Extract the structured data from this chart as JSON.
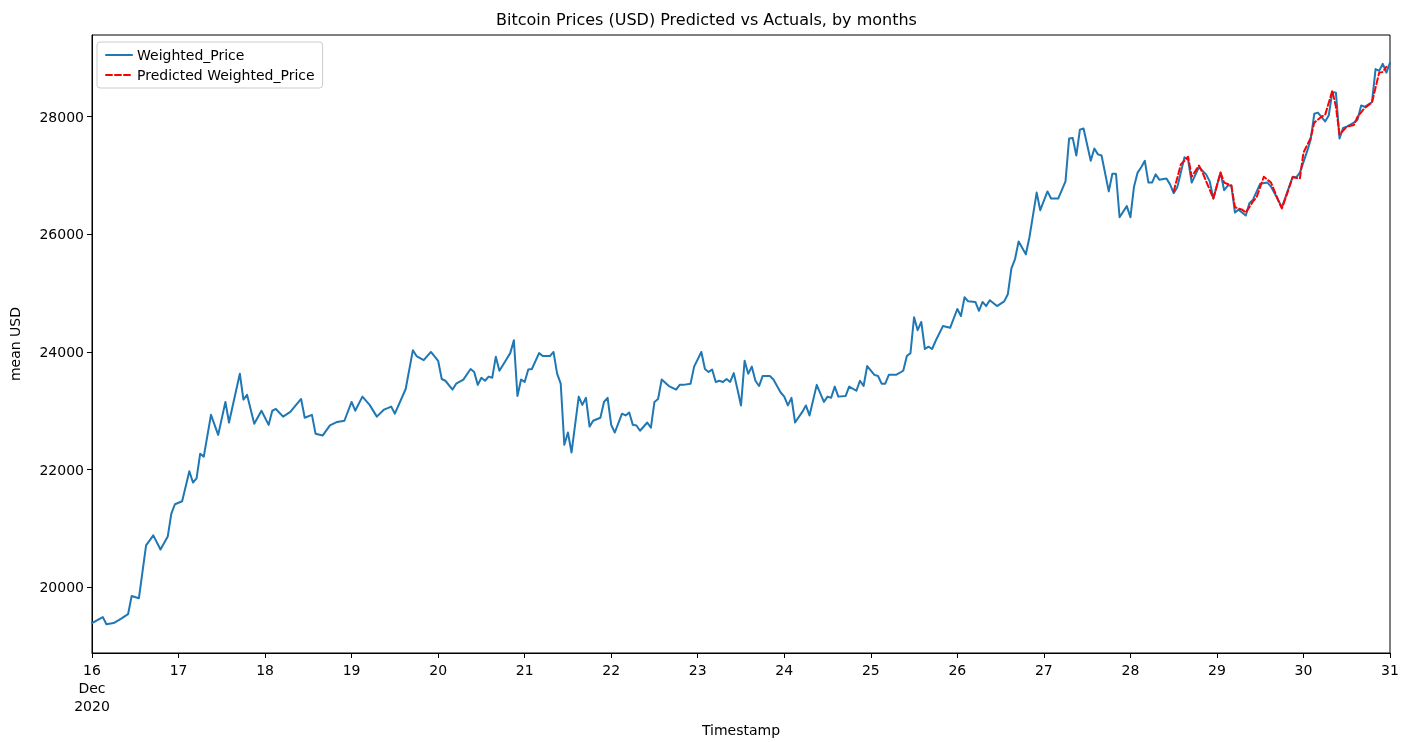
{
  "chart_data": {
    "type": "line",
    "title": "Bitcoin Prices (USD) Predicted vs Actuals, by months",
    "xlabel": "Timestamp",
    "ylabel": "mean USD",
    "xlim": [
      "2020-12-16",
      "2020-12-31"
    ],
    "ylim": [
      18880,
      29390
    ],
    "xticks": [
      {
        "value": "2020-12-16",
        "label": "16\nDec\n2020"
      },
      {
        "value": "2020-12-17",
        "label": "17"
      },
      {
        "value": "2020-12-18",
        "label": "18"
      },
      {
        "value": "2020-12-19",
        "label": "19"
      },
      {
        "value": "2020-12-20",
        "label": "20"
      },
      {
        "value": "2020-12-21",
        "label": "21"
      },
      {
        "value": "2020-12-22",
        "label": "22"
      },
      {
        "value": "2020-12-23",
        "label": "23"
      },
      {
        "value": "2020-12-24",
        "label": "24"
      },
      {
        "value": "2020-12-25",
        "label": "25"
      },
      {
        "value": "2020-12-26",
        "label": "26"
      },
      {
        "value": "2020-12-27",
        "label": "27"
      },
      {
        "value": "2020-12-28",
        "label": "28"
      },
      {
        "value": "2020-12-29",
        "label": "29"
      },
      {
        "value": "2020-12-30",
        "label": "30"
      },
      {
        "value": "2020-12-31",
        "label": "31"
      }
    ],
    "yticks": [
      20000,
      22000,
      24000,
      26000,
      28000
    ],
    "grid": false,
    "legend": "top left",
    "marker": "none",
    "series": [
      {
        "name": "Weighted_Price",
        "color": "#1f77b4",
        "line_style": "solid",
        "x": [
          "2020-12-16T00:00",
          "2020-12-16T03:00",
          "2020-12-16T04:00",
          "2020-12-16T06:00",
          "2020-12-16T08:00",
          "2020-12-16T10:00",
          "2020-12-16T11:00",
          "2020-12-16T13:00",
          "2020-12-16T15:00",
          "2020-12-16T17:00",
          "2020-12-16T19:00",
          "2020-12-16T21:00",
          "2020-12-16T22:00",
          "2020-12-16T23:00",
          "2020-12-17T01:00",
          "2020-12-17T03:00",
          "2020-12-17T04:00",
          "2020-12-17T05:00",
          "2020-12-17T06:00",
          "2020-12-17T07:00",
          "2020-12-17T09:00",
          "2020-12-17T11:00",
          "2020-12-17T13:00",
          "2020-12-17T14:00",
          "2020-12-17T17:00",
          "2020-12-17T18:00",
          "2020-12-17T19:00",
          "2020-12-17T21:00",
          "2020-12-17T23:00",
          "2020-12-18T01:00",
          "2020-12-18T02:00",
          "2020-12-18T03:00",
          "2020-12-18T05:00",
          "2020-12-18T07:00",
          "2020-12-18T10:00",
          "2020-12-18T11:00",
          "2020-12-18T13:00",
          "2020-12-18T14:00",
          "2020-12-18T16:00",
          "2020-12-18T18:00",
          "2020-12-18T20:00",
          "2020-12-18T22:00",
          "2020-12-19T00:00",
          "2020-12-19T01:00",
          "2020-12-19T03:00",
          "2020-12-19T05:00",
          "2020-12-19T07:00",
          "2020-12-19T09:00",
          "2020-12-19T11:00",
          "2020-12-19T12:00",
          "2020-12-19T15:00",
          "2020-12-19T17:00",
          "2020-12-19T18:00",
          "2020-12-19T20:00",
          "2020-12-19T22:00",
          "2020-12-20T00:00",
          "2020-12-20T01:00",
          "2020-12-20T02:00",
          "2020-12-20T04:00",
          "2020-12-20T05:00",
          "2020-12-20T07:00",
          "2020-12-20T09:00",
          "2020-12-20T10:00",
          "2020-12-20T11:00",
          "2020-12-20T12:00",
          "2020-12-20T13:00",
          "2020-12-20T14:00",
          "2020-12-20T15:00",
          "2020-12-20T16:00",
          "2020-12-20T17:00",
          "2020-12-20T19:00",
          "2020-12-20T20:00",
          "2020-12-20T21:00",
          "2020-12-20T22:00",
          "2020-12-20T23:00",
          "2020-12-21T00:00",
          "2020-12-21T01:00",
          "2020-12-21T02:00",
          "2020-12-21T04:00",
          "2020-12-21T05:00",
          "2020-12-21T07:00",
          "2020-12-21T08:00",
          "2020-12-21T09:00",
          "2020-12-21T10:00",
          "2020-12-21T11:00",
          "2020-12-21T12:00",
          "2020-12-21T13:00",
          "2020-12-21T15:00",
          "2020-12-21T16:00",
          "2020-12-21T17:00",
          "2020-12-21T18:00",
          "2020-12-21T19:00",
          "2020-12-21T21:00",
          "2020-12-21T22:00",
          "2020-12-21T23:00",
          "2020-12-22T00:00",
          "2020-12-22T01:00",
          "2020-12-22T03:00",
          "2020-12-22T04:00",
          "2020-12-22T05:00",
          "2020-12-22T06:00",
          "2020-12-22T07:00",
          "2020-12-22T08:00",
          "2020-12-22T10:00",
          "2020-12-22T11:00",
          "2020-12-22T12:00",
          "2020-12-22T13:00",
          "2020-12-22T14:00",
          "2020-12-22T16:00",
          "2020-12-22T18:00",
          "2020-12-22T19:00",
          "2020-12-22T20:00",
          "2020-12-22T22:00",
          "2020-12-22T23:00",
          "2020-12-23T01:00",
          "2020-12-23T02:00",
          "2020-12-23T03:00",
          "2020-12-23T04:00",
          "2020-12-23T05:00",
          "2020-12-23T06:00",
          "2020-12-23T07:00",
          "2020-12-23T08:00",
          "2020-12-23T09:00",
          "2020-12-23T10:00",
          "2020-12-23T11:00",
          "2020-12-23T12:00",
          "2020-12-23T13:00",
          "2020-12-23T14:00",
          "2020-12-23T15:00",
          "2020-12-23T16:00",
          "2020-12-23T17:00",
          "2020-12-23T18:00",
          "2020-12-23T20:00",
          "2020-12-23T21:00",
          "2020-12-23T23:00",
          "2020-12-24T00:00",
          "2020-12-24T01:00",
          "2020-12-24T02:00",
          "2020-12-24T03:00",
          "2020-12-24T05:00",
          "2020-12-24T06:00",
          "2020-12-24T07:00",
          "2020-12-24T09:00",
          "2020-12-24T11:00",
          "2020-12-24T12:00",
          "2020-12-24T13:00",
          "2020-12-24T14:00",
          "2020-12-24T15:00",
          "2020-12-24T17:00",
          "2020-12-24T18:00",
          "2020-12-24T20:00",
          "2020-12-24T21:00",
          "2020-12-24T22:00",
          "2020-12-24T23:00",
          "2020-12-25T01:00",
          "2020-12-25T02:00",
          "2020-12-25T03:00",
          "2020-12-25T04:00",
          "2020-12-25T05:00",
          "2020-12-25T07:00",
          "2020-12-25T09:00",
          "2020-12-25T10:00",
          "2020-12-25T11:00",
          "2020-12-25T12:00",
          "2020-12-25T13:00",
          "2020-12-25T14:00",
          "2020-12-25T15:00",
          "2020-12-25T16:00",
          "2020-12-25T17:00",
          "2020-12-25T18:00",
          "2020-12-25T20:00",
          "2020-12-25T22:00",
          "2020-12-26T00:00",
          "2020-12-26T01:00",
          "2020-12-26T02:00",
          "2020-12-26T03:00",
          "2020-12-26T05:00",
          "2020-12-26T06:00",
          "2020-12-26T07:00",
          "2020-12-26T08:00",
          "2020-12-26T09:00",
          "2020-12-26T11:00",
          "2020-12-26T13:00",
          "2020-12-26T14:00",
          "2020-12-26T15:00",
          "2020-12-26T16:00",
          "2020-12-26T17:00",
          "2020-12-26T19:00",
          "2020-12-26T20:00",
          "2020-12-26T22:00",
          "2020-12-26T23:00",
          "2020-12-27T01:00",
          "2020-12-27T02:00",
          "2020-12-27T04:00",
          "2020-12-27T06:00",
          "2020-12-27T07:00",
          "2020-12-27T08:00",
          "2020-12-27T09:00",
          "2020-12-27T10:00",
          "2020-12-27T11:00",
          "2020-12-27T13:00",
          "2020-12-27T14:00",
          "2020-12-27T15:00",
          "2020-12-27T16:00",
          "2020-12-27T18:00",
          "2020-12-27T19:00",
          "2020-12-27T20:00",
          "2020-12-27T21:00",
          "2020-12-27T23:00",
          "2020-12-28T00:00",
          "2020-12-28T01:00",
          "2020-12-28T02:00",
          "2020-12-28T03:00",
          "2020-12-28T04:00",
          "2020-12-28T05:00",
          "2020-12-28T06:00",
          "2020-12-28T07:00",
          "2020-12-28T08:00",
          "2020-12-28T10:00",
          "2020-12-28T11:00",
          "2020-12-28T12:00",
          "2020-12-28T13:00",
          "2020-12-28T15:00",
          "2020-12-28T16:00",
          "2020-12-28T17:00",
          "2020-12-28T19:00",
          "2020-12-28T21:00",
          "2020-12-28T22:00",
          "2020-12-28T23:00",
          "2020-12-29T01:00",
          "2020-12-29T02:00",
          "2020-12-29T03:00",
          "2020-12-29T04:00",
          "2020-12-29T05:00",
          "2020-12-29T06:00",
          "2020-12-29T08:00",
          "2020-12-29T09:00",
          "2020-12-29T10:00",
          "2020-12-29T12:00",
          "2020-12-29T14:00",
          "2020-12-29T15:00",
          "2020-12-29T16:00",
          "2020-12-29T18:00",
          "2020-12-29T19:00",
          "2020-12-29T21:00",
          "2020-12-29T22:00",
          "2020-12-29T23:00",
          "2020-12-30T01:00",
          "2020-12-30T02:00",
          "2020-12-30T03:00",
          "2020-12-30T04:00",
          "2020-12-30T06:00",
          "2020-12-30T07:00",
          "2020-12-30T08:00",
          "2020-12-30T09:00",
          "2020-12-30T10:00",
          "2020-12-30T11:00",
          "2020-12-30T12:00",
          "2020-12-30T14:00",
          "2020-12-30T15:00",
          "2020-12-30T16:00",
          "2020-12-30T17:00",
          "2020-12-30T19:00",
          "2020-12-30T20:00",
          "2020-12-30T21:00",
          "2020-12-30T22:00",
          "2020-12-30T23:00",
          "2020-12-31T00:00"
        ],
        "values": [
          19390,
          19490,
          19370,
          19390,
          19460,
          19540,
          19850,
          19810,
          20710,
          20880,
          20640,
          20860,
          21250,
          21410,
          21460,
          21970,
          21780,
          21850,
          22270,
          22220,
          22930,
          22590,
          23150,
          22800,
          23630,
          23190,
          23270,
          22780,
          23000,
          22760,
          23000,
          23030,
          22900,
          22980,
          23200,
          22880,
          22930,
          22610,
          22580,
          22750,
          22810,
          22830,
          23150,
          23000,
          23240,
          23100,
          22900,
          23020,
          23070,
          22950,
          23370,
          24030,
          23930,
          23860,
          24000,
          23850,
          23540,
          23510,
          23360,
          23460,
          23530,
          23710,
          23660,
          23440,
          23560,
          23510,
          23580,
          23560,
          23920,
          23680,
          23880,
          23980,
          24200,
          23250,
          23530,
          23490,
          23700,
          23710,
          23980,
          23930,
          23930,
          24000,
          23630,
          23460,
          22420,
          22630,
          22290,
          23240,
          23100,
          23220,
          22730,
          22830,
          22880,
          23150,
          23220,
          22760,
          22630,
          22950,
          22920,
          22970,
          22760,
          22750,
          22660,
          22800,
          22710,
          23150,
          23200,
          23530,
          23420,
          23360,
          23440,
          23440,
          23460,
          23750,
          24000,
          23710,
          23660,
          23700,
          23490,
          23510,
          23490,
          23540,
          23490,
          23640,
          23370,
          23090,
          23850,
          23630,
          23750,
          23510,
          23420,
          23590,
          23590,
          23530,
          23310,
          23240,
          23090,
          23220,
          22800,
          22980,
          23090,
          22920,
          23440,
          23150,
          23240,
          23220,
          23410,
          23240,
          23250,
          23410,
          23340,
          23510,
          23420,
          23760,
          23610,
          23590,
          23460,
          23460,
          23610,
          23610,
          23680,
          23930,
          23980,
          24590,
          24370,
          24510,
          24050,
          24090,
          24050,
          24190,
          24440,
          24410,
          24730,
          24610,
          24930,
          24860,
          24850,
          24700,
          24850,
          24780,
          24880,
          24780,
          24860,
          24980,
          25420,
          25580,
          25880,
          25660,
          25950,
          26710,
          26410,
          26730,
          26610,
          26610,
          26900,
          27630,
          27640,
          27340,
          27780,
          27800,
          27250,
          27460,
          27360,
          27340,
          26730,
          27030,
          27030,
          26290,
          26480,
          26290,
          26810,
          27050,
          27140,
          27250,
          26880,
          26880,
          27020,
          26930,
          26950,
          26850,
          26700,
          26800,
          27310,
          27270,
          26880,
          27140,
          27020,
          26900,
          26610,
          27050,
          26750,
          26830,
          26830,
          26370,
          26420,
          26320,
          26530,
          26590,
          26860,
          26880,
          26810,
          26700,
          26460,
          26630,
          26980,
          26970,
          27050,
          27410,
          27610,
          28050,
          28070,
          27920,
          28020,
          28420,
          28410,
          27630,
          27810,
          27830,
          27900,
          27950,
          28190,
          28170,
          28250,
          28810,
          28780,
          28900,
          28750,
          28920
        ]
      },
      {
        "name": "Predicted Weighted_Price",
        "color": "#ff0000",
        "line_style": "dashed",
        "x": [
          "2020-12-28T12:00",
          "2020-12-28T14:00",
          "2020-12-28T16:00",
          "2020-12-28T17:00",
          "2020-12-28T19:00",
          "2020-12-28T20:00",
          "2020-12-28T22:00",
          "2020-12-28T23:00",
          "2020-12-29T01:00",
          "2020-12-29T02:00",
          "2020-12-29T04:00",
          "2020-12-29T05:00",
          "2020-12-29T07:00",
          "2020-12-29T08:00",
          "2020-12-29T10:00",
          "2020-12-29T11:00",
          "2020-12-29T13:00",
          "2020-12-29T15:00",
          "2020-12-29T17:00",
          "2020-12-29T18:00",
          "2020-12-29T19:00",
          "2020-12-29T21:00",
          "2020-12-29T23:00",
          "2020-12-30T00:00",
          "2020-12-30T02:00",
          "2020-12-30T03:00",
          "2020-12-30T05:00",
          "2020-12-30T06:00",
          "2020-12-30T08:00",
          "2020-12-30T09:00",
          "2020-12-30T10:00",
          "2020-12-30T12:00",
          "2020-12-30T14:00",
          "2020-12-30T15:00",
          "2020-12-30T17:00",
          "2020-12-30T19:00",
          "2020-12-30T21:00",
          "2020-12-30T22:00",
          "2020-12-30T23:00"
        ],
        "values": [
          26730,
          27190,
          27320,
          26980,
          27170,
          27050,
          26760,
          26610,
          27050,
          26880,
          26830,
          26460,
          26420,
          26370,
          26560,
          26630,
          26980,
          26880,
          26580,
          26440,
          26610,
          26970,
          26950,
          27390,
          27640,
          27900,
          28000,
          28030,
          28440,
          28170,
          27700,
          27830,
          27860,
          28000,
          28150,
          28240,
          28750,
          28760,
          28850
        ]
      }
    ]
  }
}
